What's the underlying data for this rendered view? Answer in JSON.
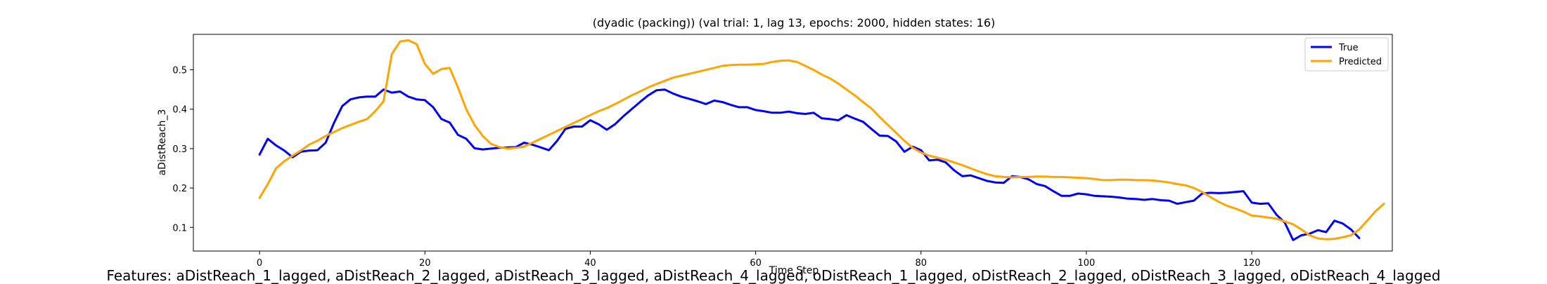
{
  "chart_data": {
    "type": "line",
    "title": "(dyadic (packing)) (val trial: 1, lag 13, epochs: 2000, hidden states: 16)",
    "xlabel": "Time Step",
    "ylabel": "aDistReach_3",
    "xlim": [
      -8,
      137
    ],
    "ylim": [
      0.04,
      0.59
    ],
    "xticks": [
      0,
      20,
      40,
      60,
      80,
      100,
      120
    ],
    "yticks": [
      0.1,
      0.2,
      0.3,
      0.4,
      0.5
    ],
    "grid": false,
    "legend_position": "top-right",
    "series": [
      {
        "name": "True",
        "color": "#0000ff",
        "values": [
          0.285,
          0.325,
          0.308,
          0.295,
          0.278,
          0.292,
          0.295,
          0.296,
          0.315,
          0.365,
          0.408,
          0.425,
          0.43,
          0.432,
          0.432,
          0.45,
          0.442,
          0.445,
          0.432,
          0.425,
          0.423,
          0.405,
          0.375,
          0.366,
          0.335,
          0.325,
          0.301,
          0.298,
          0.3,
          0.302,
          0.303,
          0.304,
          0.315,
          0.31,
          0.303,
          0.296,
          0.32,
          0.35,
          0.356,
          0.356,
          0.372,
          0.362,
          0.348,
          0.362,
          0.382,
          0.4,
          0.418,
          0.435,
          0.448,
          0.45,
          0.44,
          0.432,
          0.426,
          0.42,
          0.413,
          0.422,
          0.418,
          0.411,
          0.405,
          0.405,
          0.398,
          0.395,
          0.391,
          0.391,
          0.394,
          0.39,
          0.388,
          0.391,
          0.377,
          0.375,
          0.372,
          0.385,
          0.376,
          0.368,
          0.35,
          0.333,
          0.332,
          0.318,
          0.292,
          0.305,
          0.296,
          0.27,
          0.272,
          0.265,
          0.245,
          0.23,
          0.232,
          0.225,
          0.218,
          0.214,
          0.213,
          0.23,
          0.228,
          0.222,
          0.21,
          0.205,
          0.192,
          0.18,
          0.18,
          0.186,
          0.184,
          0.18,
          0.179,
          0.178,
          0.176,
          0.173,
          0.172,
          0.17,
          0.172,
          0.169,
          0.168,
          0.16,
          0.164,
          0.168,
          0.186,
          0.188,
          0.187,
          0.188,
          0.19,
          0.192,
          0.163,
          0.16,
          0.161,
          0.132,
          0.112,
          0.068,
          0.08,
          0.084,
          0.093,
          0.088,
          0.117,
          0.11,
          0.095,
          0.073
        ]
      },
      {
        "name": "Predicted",
        "color": "#ffa500",
        "values": [
          0.175,
          0.21,
          0.25,
          0.268,
          0.282,
          0.295,
          0.31,
          0.32,
          0.332,
          0.342,
          0.352,
          0.36,
          0.368,
          0.375,
          0.395,
          0.42,
          0.54,
          0.572,
          0.575,
          0.565,
          0.515,
          0.49,
          0.502,
          0.505,
          0.455,
          0.4,
          0.36,
          0.332,
          0.312,
          0.304,
          0.3,
          0.302,
          0.305,
          0.315,
          0.325,
          0.335,
          0.345,
          0.355,
          0.365,
          0.375,
          0.385,
          0.395,
          0.403,
          0.413,
          0.424,
          0.435,
          0.445,
          0.455,
          0.464,
          0.472,
          0.48,
          0.485,
          0.49,
          0.495,
          0.5,
          0.505,
          0.51,
          0.512,
          0.513,
          0.513,
          0.514,
          0.515,
          0.52,
          0.523,
          0.524,
          0.52,
          0.51,
          0.5,
          0.488,
          0.478,
          0.465,
          0.45,
          0.435,
          0.418,
          0.402,
          0.38,
          0.36,
          0.34,
          0.32,
          0.302,
          0.29,
          0.282,
          0.277,
          0.272,
          0.265,
          0.258,
          0.25,
          0.242,
          0.235,
          0.23,
          0.228,
          0.227,
          0.228,
          0.228,
          0.229,
          0.229,
          0.228,
          0.228,
          0.227,
          0.226,
          0.225,
          0.223,
          0.22,
          0.22,
          0.221,
          0.221,
          0.22,
          0.22,
          0.219,
          0.217,
          0.214,
          0.21,
          0.207,
          0.2,
          0.19,
          0.177,
          0.165,
          0.155,
          0.148,
          0.14,
          0.13,
          0.128,
          0.125,
          0.122,
          0.115,
          0.108,
          0.095,
          0.08,
          0.072,
          0.07,
          0.071,
          0.075,
          0.08,
          0.095,
          0.118,
          0.142,
          0.16
        ]
      }
    ]
  },
  "footer": {
    "text": "Features: aDistReach_1_lagged, aDistReach_2_lagged, aDistReach_3_lagged, aDistReach_4_lagged, oDistReach_1_lagged, oDistReach_2_lagged, oDistReach_3_lagged, oDistReach_4_lagged"
  }
}
